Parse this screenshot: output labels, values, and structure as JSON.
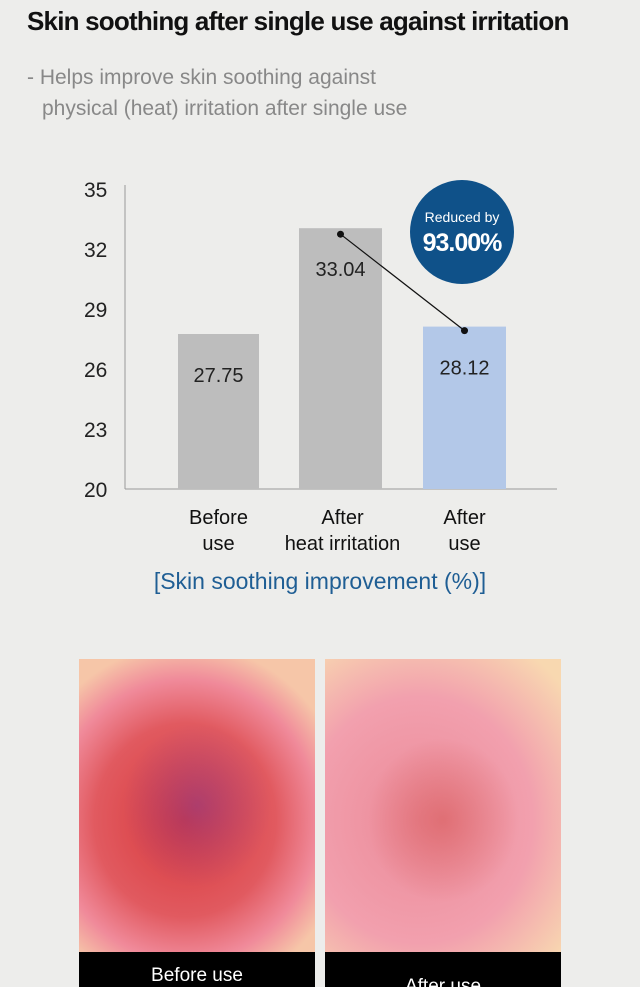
{
  "title": "Skin soothing after single use against irritation",
  "subtitle": [
    "- Helps improve skin soothing against",
    "physical (heat) irritation after single use"
  ],
  "chart_data": {
    "type": "bar",
    "categories": [
      [
        "Before",
        "use"
      ],
      [
        "After",
        "heat irritation"
      ],
      [
        "After",
        "use"
      ]
    ],
    "values": [
      27.75,
      33.04,
      28.12
    ],
    "yticks": [
      "35",
      "32",
      "29",
      "26",
      "23",
      "20"
    ],
    "ylim": [
      20,
      35
    ],
    "bar_colors": [
      "#bdbdbd",
      "#bdbdbd",
      "#b3c8e8"
    ],
    "badge": {
      "line1": "Reduced by",
      "line2": "93.00%",
      "color": "#0f5189"
    },
    "xlabel": "[Skin soothing improvement (%)]"
  },
  "photos": [
    {
      "label": "Before use"
    },
    {
      "label": "After use"
    }
  ]
}
